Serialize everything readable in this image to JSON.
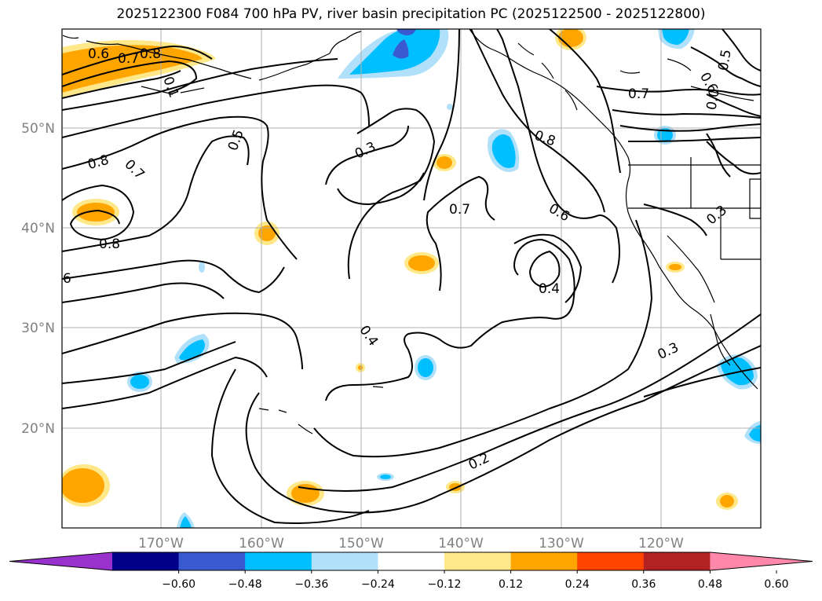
{
  "title": "2025122300 F084 700 hPa PV, river basin precipitation PC (2025122500 - 2025122800)",
  "map": {
    "lat_ticks": [
      "50°N",
      "40°N",
      "30°N",
      "20°N"
    ],
    "lon_ticks": [
      "170°W",
      "160°W",
      "150°W",
      "140°W",
      "130°W",
      "120°W"
    ],
    "contour_labels": [
      "0.6",
      "0.7",
      "0.8",
      "0.1",
      "0.5",
      "0.6",
      "0.0",
      "0.5",
      "0.3",
      "0.7",
      "0.8",
      "0.8",
      "0.7",
      "0.8",
      "0.6",
      "0.4",
      "0.7",
      "0.4",
      "0.3",
      "0.2",
      "6",
      "0.3"
    ],
    "colors": {
      "pos_weak": "#ffe88a",
      "pos_mid": "#ffa500",
      "neg_weak": "#b0e0fa",
      "neg_mid": "#00bfff",
      "neg_strong": "#3a5bd0",
      "coast": "#000000",
      "grid": "#b0b0b0"
    }
  },
  "colorbar": {
    "labels": [
      "−0.60",
      "−0.48",
      "−0.36",
      "−0.24",
      "−0.12",
      "0.12",
      "0.24",
      "0.36",
      "0.48",
      "0.60"
    ],
    "colors": [
      "#9932cc",
      "#00008b",
      "#3a5bd0",
      "#00bfff",
      "#b0e0fa",
      "#ffffff",
      "#ffe88a",
      "#ffa500",
      "#ff4500",
      "#b22222",
      "#ff88aa"
    ]
  }
}
